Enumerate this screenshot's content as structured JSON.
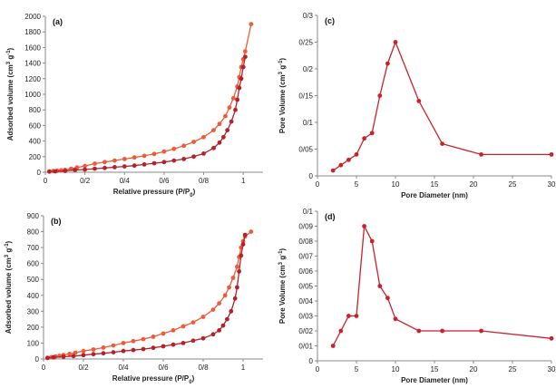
{
  "chart_data": [
    {
      "type": "line",
      "panel_label": "(a)",
      "xlabel": "Relative pressure (P/P",
      "xlabel_sub": "0",
      "xlabel_end": ")",
      "ylabel": "Adsorbed volume (cm",
      "ylabel_sup1": "3",
      "ylabel_mid": " g",
      "ylabel_sup2": "-1",
      "ylabel_end": ")",
      "xlim": [
        0,
        1.1
      ],
      "ylim": [
        0,
        2000
      ],
      "xticks": [
        0,
        0.2,
        0.4,
        0.6,
        0.8,
        1
      ],
      "xtick_labels": [
        "0",
        "0/2",
        "0/4",
        "0/6",
        "0/8",
        "1"
      ],
      "yticks": [
        0,
        200,
        400,
        600,
        800,
        1000,
        1200,
        1400,
        1600,
        1800,
        2000
      ],
      "ytick_labels": [
        "0",
        "200",
        "400",
        "600",
        "800",
        "1000",
        "1200",
        "1400",
        "1600",
        "1800",
        "2000"
      ],
      "grid": false,
      "series": [
        {
          "color": "#ee5a3a",
          "x": [
            0.02,
            0.04,
            0.06,
            0.08,
            0.1,
            0.13,
            0.16,
            0.2,
            0.25,
            0.3,
            0.35,
            0.4,
            0.45,
            0.5,
            0.55,
            0.6,
            0.65,
            0.7,
            0.75,
            0.8,
            0.85,
            0.88,
            0.91,
            0.93,
            0.95,
            0.97,
            0.98,
            0.99,
            1.0,
            1.01,
            1.04
          ],
          "y": [
            10,
            15,
            20,
            25,
            30,
            45,
            60,
            80,
            110,
            130,
            150,
            170,
            190,
            210,
            235,
            265,
            300,
            340,
            390,
            450,
            540,
            620,
            720,
            830,
            950,
            1100,
            1220,
            1350,
            1450,
            1550,
            1900
          ]
        },
        {
          "color": "#b3222a",
          "x": [
            0.02,
            0.05,
            0.1,
            0.15,
            0.2,
            0.25,
            0.3,
            0.35,
            0.4,
            0.45,
            0.5,
            0.55,
            0.6,
            0.65,
            0.7,
            0.75,
            0.8,
            0.85,
            0.88,
            0.9,
            0.92,
            0.94,
            0.96,
            0.97,
            0.98,
            0.99,
            1.0,
            1.01
          ],
          "y": [
            8,
            12,
            18,
            28,
            35,
            45,
            55,
            65,
            75,
            85,
            100,
            115,
            130,
            150,
            170,
            200,
            240,
            310,
            380,
            450,
            540,
            650,
            800,
            930,
            1080,
            1200,
            1350,
            1480
          ]
        }
      ]
    },
    {
      "type": "line",
      "panel_label": "(b)",
      "xlabel": "Relative pressure (P/P",
      "xlabel_sub": "0",
      "xlabel_end": ")",
      "ylabel": "Adsorbed volume (cm",
      "ylabel_sup1": "3",
      "ylabel_mid": " g",
      "ylabel_sup2": "-1",
      "ylabel_end": ")",
      "xlim": [
        0,
        1.1
      ],
      "ylim": [
        0,
        900
      ],
      "xticks": [
        0,
        0.2,
        0.4,
        0.6,
        0.8,
        1
      ],
      "xtick_labels": [
        "0",
        "0/2",
        "0/4",
        "0/6",
        "0/8",
        "1"
      ],
      "yticks": [
        0,
        100,
        200,
        300,
        400,
        500,
        600,
        700,
        800,
        900
      ],
      "ytick_labels": [
        "0",
        "100",
        "200",
        "300",
        "400",
        "500",
        "600",
        "700",
        "800",
        "900"
      ],
      "grid": false,
      "series": [
        {
          "color": "#ee5a3a",
          "x": [
            0.02,
            0.04,
            0.06,
            0.08,
            0.1,
            0.13,
            0.16,
            0.2,
            0.25,
            0.3,
            0.35,
            0.4,
            0.45,
            0.5,
            0.55,
            0.6,
            0.65,
            0.7,
            0.75,
            0.8,
            0.85,
            0.88,
            0.91,
            0.93,
            0.95,
            0.97,
            0.98,
            0.99,
            1.0,
            1.01,
            1.04
          ],
          "y": [
            8,
            12,
            16,
            20,
            25,
            32,
            40,
            50,
            60,
            72,
            85,
            100,
            112,
            125,
            140,
            160,
            180,
            205,
            230,
            265,
            310,
            350,
            400,
            450,
            510,
            580,
            640,
            700,
            740,
            770,
            800
          ]
        },
        {
          "color": "#b3222a",
          "x": [
            0.02,
            0.05,
            0.1,
            0.15,
            0.2,
            0.25,
            0.3,
            0.35,
            0.4,
            0.45,
            0.5,
            0.55,
            0.6,
            0.65,
            0.7,
            0.75,
            0.8,
            0.85,
            0.88,
            0.9,
            0.92,
            0.94,
            0.96,
            0.97,
            0.98,
            0.99,
            1.0,
            1.01
          ],
          "y": [
            6,
            10,
            14,
            18,
            24,
            30,
            36,
            42,
            50,
            56,
            62,
            70,
            80,
            90,
            100,
            115,
            130,
            155,
            180,
            210,
            250,
            300,
            380,
            450,
            550,
            650,
            720,
            780
          ]
        }
      ]
    },
    {
      "type": "line",
      "panel_label": "(c)",
      "xlabel": "Pore Diameter (nm)",
      "ylabel": "Pore Volume (cm",
      "ylabel_sup1": "3",
      "ylabel_mid": " g",
      "ylabel_sup2": "-1",
      "ylabel_end": ")",
      "xlim": [
        0,
        30
      ],
      "ylim": [
        0,
        0.3
      ],
      "xticks": [
        0,
        5,
        10,
        15,
        20,
        25,
        30
      ],
      "xtick_labels": [
        "0",
        "5",
        "10",
        "15",
        "20",
        "25",
        "30"
      ],
      "yticks": [
        0,
        0.05,
        0.1,
        0.15,
        0.2,
        0.25,
        0.3
      ],
      "ytick_labels": [
        "0",
        "0/05",
        "0/1",
        "0/15",
        "0/2",
        "0/25",
        "0/3"
      ],
      "grid": false,
      "series": [
        {
          "color": "#c8232a",
          "x": [
            2,
            3,
            4,
            5,
            6,
            7,
            8,
            9,
            10,
            13,
            16,
            21,
            30
          ],
          "y": [
            0.01,
            0.02,
            0.03,
            0.04,
            0.07,
            0.08,
            0.15,
            0.21,
            0.25,
            0.14,
            0.06,
            0.04,
            0.04
          ]
        }
      ]
    },
    {
      "type": "line",
      "panel_label": "(d)",
      "xlabel": "Pore Diameter (nm)",
      "ylabel": "Pore Volume (cm",
      "ylabel_sup1": "3",
      "ylabel_mid": " g",
      "ylabel_sup2": "-1",
      "ylabel_end": ")",
      "xlim": [
        0,
        30
      ],
      "ylim": [
        0,
        0.1
      ],
      "xticks": [
        0,
        5,
        10,
        15,
        20,
        25,
        30
      ],
      "xtick_labels": [
        "0",
        "5",
        "10",
        "15",
        "20",
        "25",
        "30"
      ],
      "yticks": [
        0,
        0.01,
        0.02,
        0.03,
        0.04,
        0.05,
        0.06,
        0.07,
        0.08,
        0.09,
        0.1
      ],
      "ytick_labels": [
        "0",
        "0/01",
        "0/02",
        "0/03",
        "0/04",
        "0/05",
        "0/06",
        "0/07",
        "0/08",
        "0/09",
        "0/1"
      ],
      "grid": false,
      "series": [
        {
          "color": "#c8232a",
          "x": [
            2,
            3,
            4,
            5,
            6,
            7,
            8,
            9,
            10,
            13,
            16,
            21,
            30
          ],
          "y": [
            0.01,
            0.02,
            0.03,
            0.03,
            0.09,
            0.08,
            0.05,
            0.042,
            0.028,
            0.02,
            0.02,
            0.02,
            0.015
          ]
        }
      ]
    }
  ]
}
